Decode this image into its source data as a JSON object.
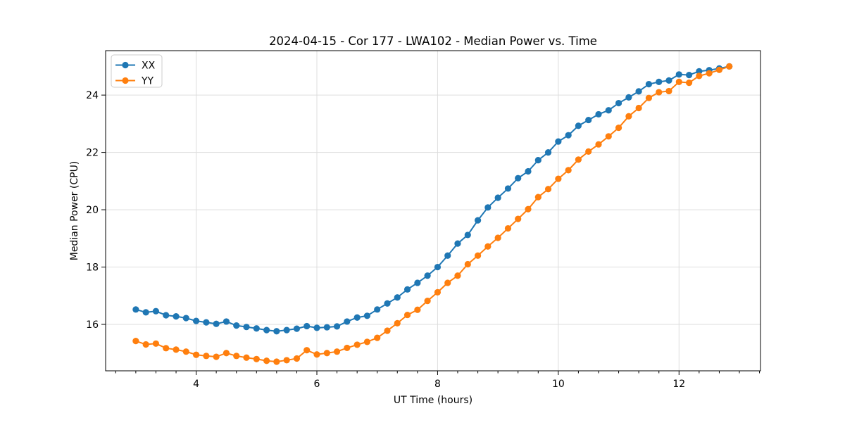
{
  "chart_data": {
    "type": "line",
    "title": "2024-04-15 - Cor 177 - LWA102 - Median Power vs. Time",
    "xlabel": "UT Time (hours)",
    "ylabel": "Median Power (CPU)",
    "xlim": [
      2.5,
      13.35
    ],
    "ylim": [
      14.38,
      25.55
    ],
    "x_ticks": [
      4,
      6,
      8,
      10,
      12
    ],
    "x_minor_ticks": [
      2.667,
      3,
      3.333,
      3.667,
      4.333,
      4.667,
      5,
      5.333,
      5.667,
      6.333,
      6.667,
      7,
      7.333,
      7.667,
      8.333,
      8.667,
      9,
      9.333,
      9.667,
      10.333,
      10.667,
      11,
      11.333,
      11.667,
      12.333,
      12.667,
      13,
      13.333
    ],
    "y_ticks": [
      16,
      18,
      20,
      22,
      24
    ],
    "grid": true,
    "legend_position": "upper left",
    "marker": "o",
    "x": [
      3,
      3.167,
      3.333,
      3.5,
      3.667,
      3.833,
      4,
      4.167,
      4.333,
      4.5,
      4.667,
      4.833,
      5,
      5.167,
      5.333,
      5.5,
      5.667,
      5.833,
      6,
      6.167,
      6.333,
      6.5,
      6.667,
      6.833,
      7,
      7.167,
      7.333,
      7.5,
      7.667,
      7.833,
      8,
      8.167,
      8.333,
      8.5,
      8.667,
      8.833,
      9,
      9.167,
      9.333,
      9.5,
      9.667,
      9.833,
      10,
      10.167,
      10.333,
      10.5,
      10.667,
      10.833,
      11,
      11.167,
      11.333,
      11.5,
      11.667,
      11.833,
      12,
      12.167,
      12.333,
      12.5,
      12.667,
      12.833
    ],
    "series": [
      {
        "name": "XX",
        "color": "#1f77b4",
        "values": [
          16.52,
          16.42,
          16.46,
          16.32,
          16.28,
          16.22,
          16.12,
          16.07,
          16.02,
          16.1,
          15.96,
          15.91,
          15.86,
          15.8,
          15.76,
          15.8,
          15.85,
          15.94,
          15.88,
          15.9,
          15.93,
          16.1,
          16.24,
          16.3,
          16.52,
          16.73,
          16.94,
          17.22,
          17.45,
          17.7,
          18.0,
          18.4,
          18.82,
          19.12,
          19.63,
          20.08,
          20.42,
          20.74,
          21.1,
          21.34,
          21.73,
          22.0,
          22.38,
          22.6,
          22.93,
          23.13,
          23.33,
          23.47,
          23.72,
          23.92,
          24.13,
          24.38,
          24.46,
          24.51,
          24.72,
          24.7,
          24.83,
          24.87,
          24.93,
          25.0
        ]
      },
      {
        "name": "YY",
        "color": "#ff7f0e",
        "values": [
          15.42,
          15.3,
          15.33,
          15.17,
          15.12,
          15.05,
          14.94,
          14.9,
          14.87,
          15.0,
          14.9,
          14.84,
          14.79,
          14.73,
          14.7,
          14.75,
          14.81,
          15.1,
          14.95,
          15.0,
          15.05,
          15.18,
          15.29,
          15.39,
          15.53,
          15.78,
          16.04,
          16.33,
          16.51,
          16.82,
          17.12,
          17.45,
          17.7,
          18.1,
          18.4,
          18.72,
          19.02,
          19.35,
          19.68,
          20.02,
          20.44,
          20.72,
          21.08,
          21.38,
          21.75,
          22.03,
          22.28,
          22.56,
          22.86,
          23.26,
          23.55,
          23.9,
          24.1,
          24.14,
          24.46,
          24.43,
          24.67,
          24.76,
          24.88,
          25.0
        ]
      }
    ]
  }
}
